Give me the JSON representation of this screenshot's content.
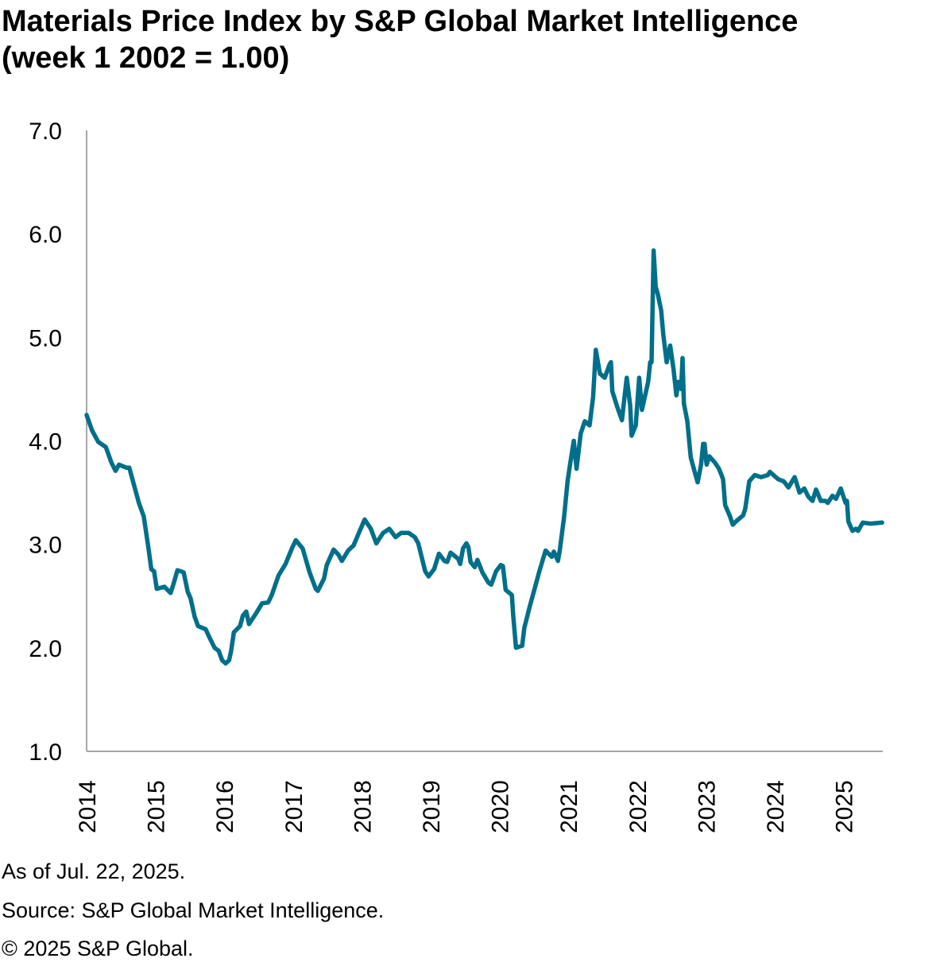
{
  "chart_data": {
    "type": "line",
    "title": "Materials Price Index by S&P Global Market Intelligence (week 1 2002 = 1.00)",
    "xlabel": "",
    "ylabel": "",
    "ylim": [
      1.0,
      7.0
    ],
    "xlim": [
      2014,
      2025.56
    ],
    "y_ticks": [
      "1.0",
      "2.0",
      "3.0",
      "4.0",
      "5.0",
      "6.0",
      "7.0"
    ],
    "x_ticks": [
      "2014",
      "2015",
      "2016",
      "2017",
      "2018",
      "2019",
      "2020",
      "2021",
      "2022",
      "2023",
      "2024",
      "2025"
    ],
    "grid": false,
    "legend": "none",
    "color": "#006f8a",
    "series": [
      {
        "x": [
          2014.0,
          2014.08,
          2014.17,
          2014.28,
          2014.36,
          2014.42,
          2014.47,
          2014.58,
          2014.62,
          2014.67,
          2014.76,
          2014.83,
          2014.9,
          2014.94,
          2014.98,
          2015.02,
          2015.13,
          2015.22,
          2015.26,
          2015.32,
          2015.41,
          2015.47,
          2015.51,
          2015.57,
          2015.62,
          2015.73,
          2015.8,
          2015.86,
          2015.92,
          2015.97,
          2016.02,
          2016.07,
          2016.1,
          2016.14,
          2016.23,
          2016.27,
          2016.32,
          2016.36,
          2016.46,
          2016.55,
          2016.64,
          2016.69,
          2016.79,
          2016.89,
          2016.99,
          2017.04,
          2017.14,
          2017.24,
          2017.33,
          2017.36,
          2017.45,
          2017.49,
          2017.59,
          2017.66,
          2017.71,
          2017.8,
          2017.88,
          2017.95,
          2018.04,
          2018.13,
          2018.21,
          2018.31,
          2018.4,
          2018.49,
          2018.57,
          2018.68,
          2018.77,
          2018.82,
          2018.92,
          2018.97,
          2019.05,
          2019.12,
          2019.2,
          2019.24,
          2019.29,
          2019.4,
          2019.43,
          2019.47,
          2019.52,
          2019.55,
          2019.58,
          2019.64,
          2019.68,
          2019.75,
          2019.84,
          2019.88,
          2019.95,
          2020.02,
          2020.05,
          2020.09,
          2020.18,
          2020.2,
          2020.24,
          2020.33,
          2020.36,
          2020.44,
          2020.51,
          2020.58,
          2020.67,
          2020.76,
          2020.79,
          2020.85,
          2020.88,
          2020.94,
          2020.99,
          2021.03,
          2021.08,
          2021.12,
          2021.18,
          2021.24,
          2021.31,
          2021.36,
          2021.4,
          2021.46,
          2021.53,
          2021.6,
          2021.62,
          2021.64,
          2021.71,
          2021.78,
          2021.83,
          2021.85,
          2021.9,
          2021.92,
          2021.98,
          2022.03,
          2022.07,
          2022.16,
          2022.19,
          2022.21,
          2022.24,
          2022.27,
          2022.3,
          2022.35,
          2022.38,
          2022.43,
          2022.48,
          2022.53,
          2022.57,
          2022.6,
          2022.64,
          2022.66,
          2022.68,
          2022.73,
          2022.78,
          2022.85,
          2022.88,
          2022.93,
          2022.96,
          2022.98,
          2023.01,
          2023.05,
          2023.13,
          2023.19,
          2023.25,
          2023.28,
          2023.35,
          2023.39,
          2023.45,
          2023.54,
          2023.57,
          2023.63,
          2023.71,
          2023.8,
          2023.9,
          2023.93,
          2024.05,
          2024.13,
          2024.2,
          2024.29,
          2024.36,
          2024.43,
          2024.49,
          2024.55,
          2024.6,
          2024.67,
          2024.74,
          2024.77,
          2024.84,
          2024.89,
          2024.96,
          2025.03,
          2025.05,
          2025.07,
          2025.13,
          2025.18,
          2025.21,
          2025.28,
          2025.39,
          2025.56
        ],
        "values": [
          4.25,
          4.1,
          3.99,
          3.94,
          3.79,
          3.71,
          3.77,
          3.74,
          3.74,
          3.62,
          3.4,
          3.27,
          2.96,
          2.76,
          2.74,
          2.57,
          2.59,
          2.53,
          2.61,
          2.75,
          2.73,
          2.54,
          2.48,
          2.3,
          2.21,
          2.18,
          2.08,
          2.0,
          1.97,
          1.88,
          1.85,
          1.88,
          1.97,
          2.15,
          2.21,
          2.31,
          2.35,
          2.23,
          2.33,
          2.43,
          2.44,
          2.51,
          2.7,
          2.81,
          2.97,
          3.04,
          2.96,
          2.73,
          2.57,
          2.55,
          2.67,
          2.8,
          2.95,
          2.9,
          2.84,
          2.94,
          2.99,
          3.1,
          3.24,
          3.15,
          3.01,
          3.11,
          3.15,
          3.07,
          3.11,
          3.11,
          3.07,
          3.01,
          2.74,
          2.69,
          2.76,
          2.91,
          2.84,
          2.83,
          2.92,
          2.86,
          2.81,
          2.96,
          3.01,
          2.97,
          2.83,
          2.78,
          2.85,
          2.73,
          2.63,
          2.61,
          2.74,
          2.8,
          2.79,
          2.56,
          2.51,
          2.31,
          2.0,
          2.02,
          2.19,
          2.4,
          2.57,
          2.74,
          2.94,
          2.88,
          2.93,
          2.84,
          2.96,
          3.27,
          3.61,
          3.79,
          4.0,
          3.73,
          4.07,
          4.19,
          4.15,
          4.42,
          4.88,
          4.65,
          4.61,
          4.74,
          4.76,
          4.48,
          4.33,
          4.2,
          4.5,
          4.61,
          4.34,
          4.05,
          4.15,
          4.61,
          4.3,
          4.57,
          4.76,
          4.76,
          5.84,
          5.49,
          5.42,
          5.26,
          5.03,
          4.76,
          4.92,
          4.69,
          4.44,
          4.57,
          4.5,
          4.8,
          4.36,
          4.19,
          3.84,
          3.67,
          3.6,
          3.77,
          3.97,
          3.97,
          3.77,
          3.85,
          3.79,
          3.73,
          3.63,
          3.38,
          3.27,
          3.19,
          3.23,
          3.28,
          3.34,
          3.61,
          3.67,
          3.65,
          3.67,
          3.7,
          3.63,
          3.61,
          3.55,
          3.65,
          3.5,
          3.54,
          3.46,
          3.42,
          3.53,
          3.42,
          3.42,
          3.4,
          3.47,
          3.44,
          3.54,
          3.4,
          3.42,
          3.22,
          3.13,
          3.15,
          3.13,
          3.21,
          3.2,
          3.21
        ]
      }
    ]
  },
  "footnotes": {
    "as_of": "As of Jul. 22, 2025.",
    "source": "Source: S&P Global Market Intelligence.",
    "copyright": "© 2025 S&P Global."
  }
}
